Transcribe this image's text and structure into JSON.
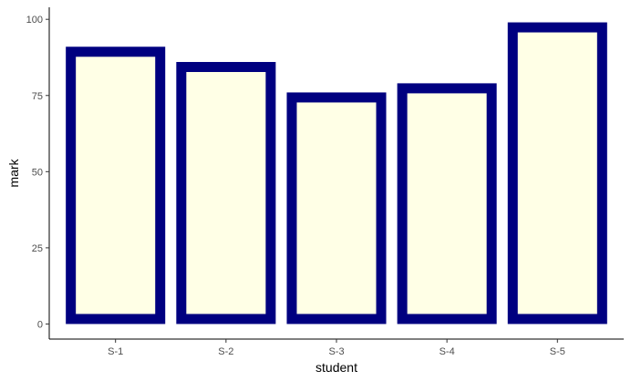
{
  "chart_data": {
    "type": "bar",
    "categories": [
      "S-1",
      "S-2",
      "S-3",
      "S-4",
      "S-5"
    ],
    "values": [
      91,
      86,
      76,
      79,
      99
    ],
    "xlabel": "student",
    "ylabel": "mark",
    "ylim": [
      -4.95,
      103.95
    ],
    "yticks": [
      0,
      25,
      50,
      75,
      100
    ],
    "grid": false,
    "legend": "none",
    "colors": {
      "bar_fill": "#FFFFE6",
      "bar_outline": "#000080",
      "axis": "#000000",
      "tick_text": "#4D4D4D",
      "background": "#FFFFFF"
    }
  }
}
